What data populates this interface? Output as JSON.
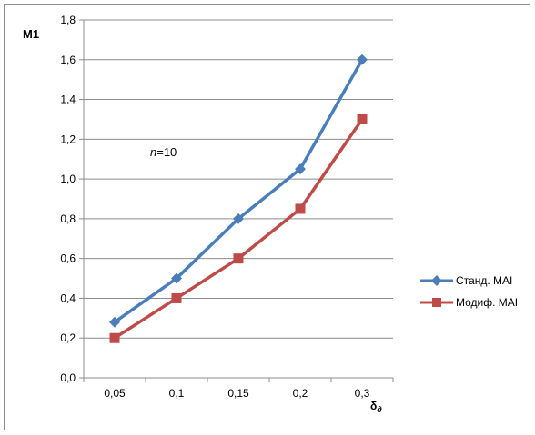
{
  "chart_data": {
    "type": "line",
    "categories": [
      "0,05",
      "0,1",
      "0,15",
      "0,2",
      "0,3"
    ],
    "series": [
      {
        "name": "Станд. MAI",
        "values": [
          0.28,
          0.5,
          0.8,
          1.05,
          1.6
        ],
        "color": "#4a7ebb",
        "marker": "diamond"
      },
      {
        "name": "Модиф. MAI",
        "values": [
          0.2,
          0.4,
          0.6,
          0.85,
          1.3
        ],
        "color": "#be4b48",
        "marker": "square"
      }
    ],
    "ylabel": "M1",
    "xlabel_main": "δ",
    "xlabel_sub": "д",
    "ylim": [
      0,
      1.8
    ],
    "yticks": [
      "0,0",
      "0,2",
      "0,4",
      "0,6",
      "0,8",
      "1,0",
      "1,2",
      "1,4",
      "1,6",
      "1,8"
    ],
    "grid": true,
    "legend": "right",
    "annotation": {
      "italic": "n",
      "rest": "=10"
    }
  }
}
